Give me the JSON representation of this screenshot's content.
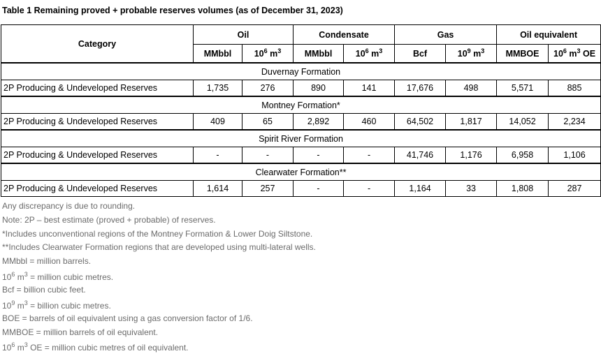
{
  "title": "Table 1 Remaining proved + probable reserves volumes (as of December 31, 2023)",
  "header": {
    "category": "Category",
    "groups": {
      "oil": "Oil",
      "condensate": "Condensate",
      "gas": "Gas",
      "oil_equivalent": "Oil equivalent"
    },
    "units": {
      "oil_mmbbl": "MMbbl",
      "oil_m3_base": "10",
      "oil_m3_exp": "6",
      "oil_m3_unit": " m",
      "oil_m3_unit_exp": "3",
      "cond_mmbbl": "MMbbl",
      "cond_m3_base": "10",
      "cond_m3_exp": "6",
      "cond_m3_unit": " m",
      "cond_m3_unit_exp": "3",
      "gas_bcf": "Bcf",
      "gas_m3_base": "10",
      "gas_m3_exp": "9",
      "gas_m3_unit": " m",
      "gas_m3_unit_exp": "3",
      "oe_mmboe": "MMBOE",
      "oe_m3_base": "10",
      "oe_m3_exp": "6",
      "oe_m3_unit": " m",
      "oe_m3_unit_exp": "3",
      "oe_m3_suffix": " OE"
    }
  },
  "sections": [
    {
      "name": "Duvernay Formation",
      "row": {
        "label": "2P Producing & Undeveloped Reserves",
        "values": [
          "1,735",
          "276",
          "890",
          "141",
          "17,676",
          "498",
          "5,571",
          "885"
        ]
      }
    },
    {
      "name": "Montney Formation*",
      "row": {
        "label": "2P Producing & Undeveloped Reserves",
        "values": [
          "409",
          "65",
          "2,892",
          "460",
          "64,502",
          "1,817",
          "14,052",
          "2,234"
        ]
      }
    },
    {
      "name": "Spirit River Formation",
      "row": {
        "label": "2P Producing & Undeveloped Reserves",
        "values": [
          "-",
          "-",
          "-",
          "-",
          "41,746",
          "1,176",
          "6,958",
          "1,106"
        ]
      }
    },
    {
      "name": "Clearwater Formation**",
      "row": {
        "label": "2P Producing & Undeveloped Reserves",
        "values": [
          "1,614",
          "257",
          "-",
          "-",
          "1,164",
          "33",
          "1,808",
          "287"
        ]
      }
    }
  ],
  "notes": {
    "rounding": "Any discrepancy is due to rounding.",
    "note_2p": "Note: 2P – best estimate (proved + probable) of reserves.",
    "montney": "*Includes unconventional regions of the Montney Formation & Lower Doig Siltstone.",
    "clearwater": "**Includes Clearwater Formation regions that are developed using multi-lateral wells.",
    "mmbbl": "MMbbl = million barrels.",
    "m3_6_base": "10",
    "m3_6_exp": "6",
    "m3_6_unit": " m",
    "m3_6_unit_exp": "3",
    "m3_6_def": " = million cubic metres.",
    "bcf": "Bcf = billion cubic feet.",
    "m3_9_base": "10",
    "m3_9_exp": "9",
    "m3_9_unit": " m",
    "m3_9_unit_exp": "3",
    "m3_9_def": " = billion cubic metres.",
    "boe": "BOE = barrels of oil equivalent using a gas conversion factor of 1/6.",
    "mmboe": "MMBOE = million barrels of oil equivalent.",
    "oe_base": "10",
    "oe_exp": "6",
    "oe_unit": " m",
    "oe_unit_exp": "3",
    "oe_def": " OE = million cubic metres of oil equivalent."
  }
}
